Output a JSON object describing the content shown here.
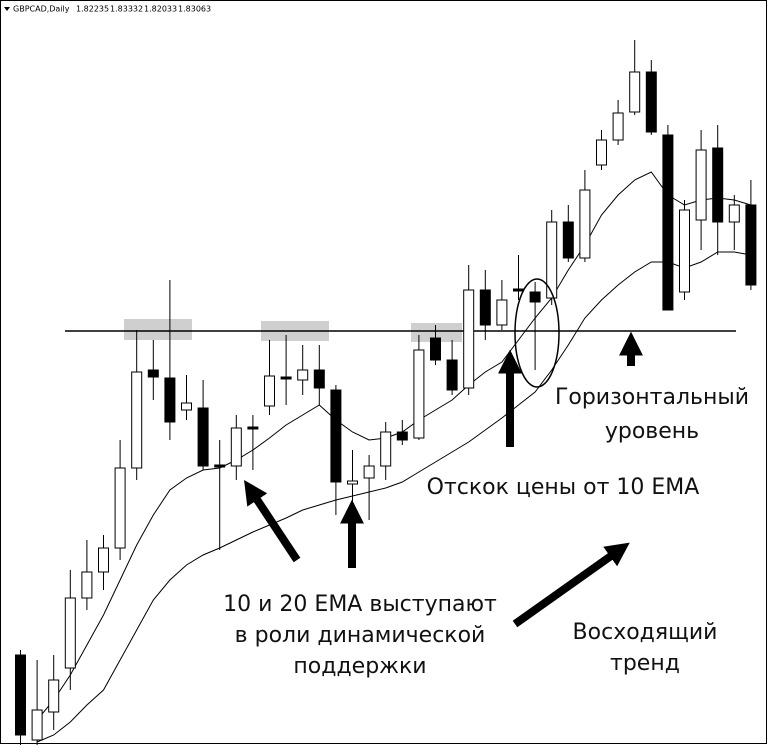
{
  "chart_data": {
    "type": "candlestick",
    "symbol": "GBPCAD,Daily",
    "header_prices": [
      1.82235,
      1.83332,
      1.82033,
      1.83063
    ],
    "ylim": [
      1.7,
      1.847
    ],
    "up_color": "#ffffff",
    "down_color": "#000000",
    "open": [
      1.718,
      1.701,
      1.7066,
      1.7154,
      1.7294,
      1.7346,
      1.7394,
      1.7554,
      1.775,
      1.7734,
      1.767,
      1.7674,
      1.756,
      1.7558,
      1.7636,
      1.7678,
      1.7736,
      1.773,
      1.775,
      1.771,
      1.7522,
      1.7534,
      1.7558,
      1.7626,
      1.7614,
      1.7814,
      1.777,
      1.7714,
      1.791,
      1.784,
      1.7912,
      1.7906,
      1.7894,
      1.8046,
      1.7974,
      1.816,
      1.821,
      1.8266,
      1.8346,
      1.822,
      1.7906,
      1.805,
      1.8194,
      1.8046,
      1.808
    ],
    "high": [
      1.719,
      1.717,
      1.718,
      1.735,
      1.741,
      1.742,
      1.761,
      1.783,
      1.781,
      1.793,
      1.774,
      1.773,
      1.761,
      1.766,
      1.766,
      1.781,
      1.782,
      1.78,
      1.78,
      1.772,
      1.759,
      1.758,
      1.7646,
      1.765,
      1.782,
      1.784,
      1.781,
      1.796,
      1.795,
      1.793,
      1.798,
      1.7926,
      1.807,
      1.808,
      1.815,
      1.823,
      1.829,
      1.841,
      1.837,
      1.824,
      1.809,
      1.823,
      1.824,
      1.81,
      1.813
    ],
    "low": [
      1.7,
      1.7,
      1.703,
      1.711,
      1.727,
      1.731,
      1.737,
      1.753,
      1.769,
      1.761,
      1.765,
      1.755,
      1.739,
      1.753,
      1.755,
      1.766,
      1.768,
      1.77,
      1.768,
      1.746,
      1.746,
      1.745,
      1.753,
      1.76,
      1.761,
      1.776,
      1.77,
      1.77,
      1.781,
      1.783,
      1.789,
      1.775,
      1.788,
      1.7966,
      1.7966,
      1.815,
      1.82,
      1.826,
      1.822,
      1.787,
      1.789,
      1.799,
      1.798,
      1.799,
      1.791
    ],
    "close": [
      1.702,
      1.707,
      1.713,
      1.7294,
      1.7346,
      1.7394,
      1.7554,
      1.7746,
      1.7736,
      1.7646,
      1.7684,
      1.7558,
      1.7556,
      1.7634,
      1.7632,
      1.7738,
      1.7732,
      1.775,
      1.7714,
      1.7526,
      1.7528,
      1.7558,
      1.7626,
      1.761,
      1.779,
      1.777,
      1.771,
      1.791,
      1.784,
      1.789,
      1.7908,
      1.7886,
      1.8046,
      1.7974,
      1.811,
      1.821,
      1.8264,
      1.8346,
      1.8226,
      1.787,
      1.807,
      1.819,
      1.8046,
      1.808,
      1.792
    ],
    "lines": [
      {
        "color": "#000000",
        "values": [
          null,
          1.705,
          1.709,
          1.714,
          1.72,
          1.726,
          1.733,
          1.74,
          1.746,
          1.751,
          1.7534,
          1.755,
          1.7554,
          1.757,
          1.759,
          1.7614,
          1.764,
          1.766,
          1.768,
          1.765,
          1.7626,
          1.761,
          1.7614,
          1.7626,
          1.765,
          1.767,
          1.769,
          1.772,
          1.7746,
          1.7766,
          1.781,
          1.7854,
          1.7894,
          1.795,
          1.8,
          1.806,
          1.81,
          1.813,
          1.8146,
          1.81,
          1.808,
          1.809,
          1.8094,
          1.809,
          1.808
        ]
      },
      {
        "color": "#000000",
        "values": [
          null,
          1.7006,
          1.702,
          1.7046,
          1.708,
          1.711,
          1.717,
          1.723,
          1.729,
          1.733,
          1.736,
          1.738,
          1.7394,
          1.741,
          1.7426,
          1.744,
          1.7454,
          1.747,
          1.748,
          1.749,
          1.7498,
          1.7506,
          1.7514,
          1.7526,
          1.7546,
          1.7566,
          1.7586,
          1.7606,
          1.763,
          1.7654,
          1.768,
          1.7706,
          1.775,
          1.78,
          1.7854,
          1.789,
          1.792,
          1.7946,
          1.7966,
          1.7966,
          1.7954,
          1.7966,
          1.7986,
          1.7986,
          1.798
        ]
      }
    ],
    "level": 1.7828,
    "annotations": [
      {
        "lines": [
          "Горизонтальный",
          "уровень"
        ]
      },
      {
        "lines": [
          "Отскок цены от 10 EMA"
        ]
      },
      {
        "lines": [
          "10 и 20 EMA выступают",
          "в роли динамической",
          "поддержки"
        ]
      },
      {
        "lines": [
          "Восходящий",
          "тренд"
        ]
      }
    ]
  }
}
